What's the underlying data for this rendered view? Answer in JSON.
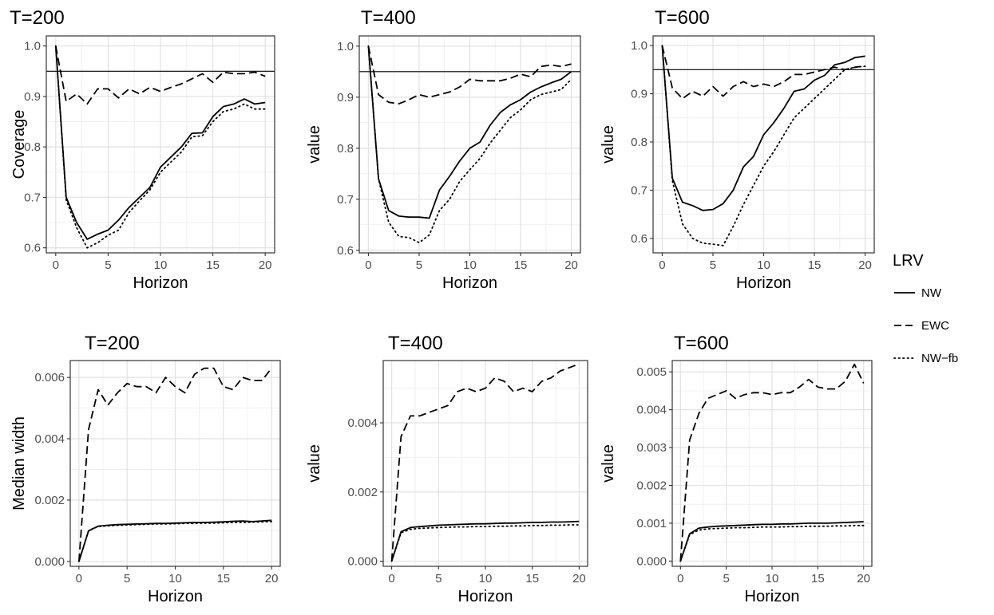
{
  "legend": {
    "title": "LRV",
    "entries": [
      {
        "name": "NW",
        "dash": "solid"
      },
      {
        "name": "EWC",
        "dash": "dashed"
      },
      {
        "name": "NW−fb",
        "dash": "dotted"
      }
    ],
    "placement": "right"
  },
  "chart_data": [
    {
      "type": "line",
      "title": "T=200",
      "xlabel": "Horizon",
      "ylabel": "Coverage",
      "xlim": [
        -0.9,
        20.9
      ],
      "ylim": [
        0.59,
        1.02
      ],
      "xticks": [
        0,
        5,
        10,
        15,
        20
      ],
      "yticks": [
        0.6,
        0.7,
        0.8,
        0.9,
        1.0
      ],
      "ytick_labels": [
        "0.6",
        "0.7",
        "0.8",
        "0.9",
        "1.0"
      ],
      "hline": 0.95,
      "grid": true,
      "x": [
        0,
        1,
        2,
        3,
        4,
        5,
        6,
        7,
        8,
        9,
        10,
        11,
        12,
        13,
        14,
        15,
        16,
        17,
        18,
        19,
        20
      ],
      "series": [
        {
          "name": "NW",
          "values": [
            1.0,
            0.7,
            0.65,
            0.617,
            0.627,
            0.635,
            0.655,
            0.68,
            0.7,
            0.72,
            0.76,
            0.78,
            0.8,
            0.827,
            0.828,
            0.86,
            0.88,
            0.885,
            0.895,
            0.885,
            0.888
          ]
        },
        {
          "name": "EWC",
          "values": [
            1.0,
            0.89,
            0.905,
            0.885,
            0.915,
            0.915,
            0.897,
            0.915,
            0.905,
            0.918,
            0.91,
            0.918,
            0.925,
            0.935,
            0.945,
            0.928,
            0.948,
            0.945,
            0.945,
            0.948,
            0.94
          ]
        },
        {
          "name": "NW−fb",
          "values": [
            1.0,
            0.695,
            0.64,
            0.6,
            0.61,
            0.625,
            0.635,
            0.67,
            0.693,
            0.715,
            0.75,
            0.77,
            0.79,
            0.82,
            0.822,
            0.85,
            0.87,
            0.875,
            0.885,
            0.875,
            0.875
          ]
        }
      ]
    },
    {
      "type": "line",
      "title": "T=400",
      "xlabel": "Horizon",
      "ylabel": "value",
      "xlim": [
        -0.9,
        20.9
      ],
      "ylim": [
        0.595,
        1.02
      ],
      "xticks": [
        0,
        5,
        10,
        15,
        20
      ],
      "yticks": [
        0.6,
        0.7,
        0.8,
        0.9,
        1.0
      ],
      "ytick_labels": [
        "0.6",
        "0.7",
        "0.8",
        "0.9",
        "1.0"
      ],
      "hline": 0.95,
      "grid": true,
      "x": [
        0,
        1,
        2,
        3,
        4,
        5,
        6,
        7,
        8,
        9,
        10,
        11,
        12,
        13,
        14,
        15,
        16,
        17,
        18,
        19,
        20
      ],
      "series": [
        {
          "name": "NW",
          "values": [
            1.0,
            0.74,
            0.678,
            0.667,
            0.665,
            0.665,
            0.663,
            0.718,
            0.745,
            0.775,
            0.8,
            0.812,
            0.845,
            0.87,
            0.885,
            0.895,
            0.91,
            0.92,
            0.928,
            0.935,
            0.95
          ]
        },
        {
          "name": "EWC",
          "values": [
            1.0,
            0.905,
            0.89,
            0.887,
            0.895,
            0.905,
            0.9,
            0.905,
            0.91,
            0.92,
            0.935,
            0.932,
            0.932,
            0.932,
            0.937,
            0.945,
            0.94,
            0.96,
            0.963,
            0.96,
            0.965
          ]
        },
        {
          "name": "NW−fb",
          "values": [
            1.0,
            0.74,
            0.655,
            0.627,
            0.625,
            0.615,
            0.63,
            0.678,
            0.7,
            0.735,
            0.758,
            0.78,
            0.81,
            0.835,
            0.86,
            0.875,
            0.895,
            0.905,
            0.91,
            0.915,
            0.935
          ]
        }
      ]
    },
    {
      "type": "line",
      "title": "T=600",
      "xlabel": "Horizon",
      "ylabel": "value",
      "xlim": [
        -0.9,
        20.9
      ],
      "ylim": [
        0.57,
        1.02
      ],
      "xticks": [
        0,
        5,
        10,
        15,
        20
      ],
      "yticks": [
        0.6,
        0.7,
        0.8,
        0.9,
        1.0
      ],
      "ytick_labels": [
        "0.6",
        "0.7",
        "0.8",
        "0.9",
        "1.0"
      ],
      "hline": 0.95,
      "grid": true,
      "x": [
        0,
        1,
        2,
        3,
        4,
        5,
        6,
        7,
        8,
        9,
        10,
        11,
        12,
        13,
        14,
        15,
        16,
        17,
        18,
        19,
        20
      ],
      "series": [
        {
          "name": "NW",
          "values": [
            1.0,
            0.725,
            0.675,
            0.668,
            0.658,
            0.66,
            0.672,
            0.7,
            0.748,
            0.77,
            0.815,
            0.84,
            0.87,
            0.905,
            0.91,
            0.928,
            0.938,
            0.96,
            0.965,
            0.975,
            0.978
          ]
        },
        {
          "name": "EWC",
          "values": [
            1.0,
            0.912,
            0.89,
            0.905,
            0.895,
            0.915,
            0.895,
            0.915,
            0.925,
            0.915,
            0.92,
            0.915,
            0.925,
            0.94,
            0.94,
            0.945,
            0.95,
            0.955,
            0.95,
            0.955,
            0.958
          ]
        },
        {
          "name": "NW−fb",
          "values": [
            1.0,
            0.72,
            0.63,
            0.6,
            0.59,
            0.588,
            0.585,
            0.625,
            0.67,
            0.71,
            0.75,
            0.78,
            0.815,
            0.85,
            0.87,
            0.89,
            0.91,
            0.93,
            0.95,
            0.955,
            0.957
          ]
        }
      ]
    },
    {
      "type": "line",
      "title": "T=200",
      "xlabel": "Horizon",
      "ylabel": "Median width",
      "xlim": [
        -0.9,
        20.9
      ],
      "ylim": [
        -0.00016,
        0.00655
      ],
      "xticks": [
        0,
        5,
        10,
        15,
        20
      ],
      "yticks": [
        0,
        0.002,
        0.004,
        0.006
      ],
      "ytick_labels": [
        "0.000",
        "0.002",
        "0.004",
        "0.006"
      ],
      "grid": true,
      "x": [
        0,
        1,
        2,
        3,
        4,
        5,
        6,
        7,
        8,
        9,
        10,
        11,
        12,
        13,
        14,
        15,
        16,
        17,
        18,
        19,
        20
      ],
      "series": [
        {
          "name": "NW",
          "values": [
            0.0,
            0.001,
            0.00115,
            0.00118,
            0.0012,
            0.00121,
            0.00122,
            0.00123,
            0.00124,
            0.00124,
            0.00125,
            0.00126,
            0.00127,
            0.00127,
            0.00128,
            0.00129,
            0.00131,
            0.00132,
            0.0013,
            0.00132,
            0.00134
          ]
        },
        {
          "name": "EWC",
          "values": [
            0.0,
            0.0043,
            0.0056,
            0.0051,
            0.0055,
            0.0058,
            0.0057,
            0.0057,
            0.0055,
            0.006,
            0.0057,
            0.0055,
            0.0061,
            0.0063,
            0.0063,
            0.0057,
            0.0056,
            0.006,
            0.0059,
            0.0059,
            0.0063
          ]
        },
        {
          "name": "NW−fb",
          "values": [
            0.0,
            0.001,
            0.00114,
            0.00116,
            0.00118,
            0.00119,
            0.0012,
            0.00121,
            0.00122,
            0.00122,
            0.00123,
            0.00124,
            0.00124,
            0.00125,
            0.00125,
            0.00126,
            0.00127,
            0.00127,
            0.00128,
            0.00129,
            0.0013
          ]
        }
      ]
    },
    {
      "type": "line",
      "title": "T=400",
      "xlabel": "Horizon",
      "ylabel": "value",
      "xlim": [
        -0.9,
        20.9
      ],
      "ylim": [
        -0.00015,
        0.0058
      ],
      "xticks": [
        0,
        5,
        10,
        15,
        20
      ],
      "yticks": [
        0,
        0.002,
        0.004
      ],
      "ytick_labels": [
        "0.000",
        "0.002",
        "0.004"
      ],
      "grid": true,
      "x": [
        0,
        1,
        2,
        3,
        4,
        5,
        6,
        7,
        8,
        9,
        10,
        11,
        12,
        13,
        14,
        15,
        16,
        17,
        18,
        19,
        20
      ],
      "series": [
        {
          "name": "NW",
          "values": [
            0.0,
            0.00085,
            0.00097,
            0.001,
            0.00102,
            0.00104,
            0.00105,
            0.00106,
            0.00107,
            0.00108,
            0.00108,
            0.00109,
            0.0011,
            0.0011,
            0.00111,
            0.00112,
            0.00112,
            0.00113,
            0.00113,
            0.00114,
            0.00115
          ]
        },
        {
          "name": "EWC",
          "values": [
            0.0,
            0.0036,
            0.0042,
            0.0042,
            0.0043,
            0.0044,
            0.0045,
            0.0049,
            0.005,
            0.0049,
            0.005,
            0.0053,
            0.0052,
            0.0049,
            0.005,
            0.0049,
            0.0052,
            0.0053,
            0.0055,
            0.0056,
            0.0057
          ]
        },
        {
          "name": "NW−fb",
          "values": [
            0.0,
            0.00082,
            0.00092,
            0.00095,
            0.00096,
            0.00097,
            0.00098,
            0.00099,
            0.00099,
            0.001,
            0.001,
            0.00101,
            0.00101,
            0.00102,
            0.00102,
            0.00103,
            0.00103,
            0.00104,
            0.00104,
            0.00105,
            0.00105
          ]
        }
      ]
    },
    {
      "type": "line",
      "title": "T=600",
      "xlabel": "Horizon",
      "ylabel": "value",
      "xlim": [
        -0.9,
        20.9
      ],
      "ylim": [
        -0.00014,
        0.0053
      ],
      "xticks": [
        0,
        5,
        10,
        15,
        20
      ],
      "yticks": [
        0,
        0.001,
        0.002,
        0.003,
        0.004,
        0.005
      ],
      "ytick_labels": [
        "0.000",
        "0.001",
        "0.002",
        "0.003",
        "0.004",
        "0.005"
      ],
      "grid": true,
      "x": [
        0,
        1,
        2,
        3,
        4,
        5,
        6,
        7,
        8,
        9,
        10,
        11,
        12,
        13,
        14,
        15,
        16,
        17,
        18,
        19,
        20
      ],
      "series": [
        {
          "name": "NW",
          "values": [
            0.0,
            0.00072,
            0.00087,
            0.0009,
            0.00092,
            0.00093,
            0.00094,
            0.00095,
            0.00096,
            0.00097,
            0.00097,
            0.00098,
            0.00098,
            0.00099,
            0.001,
            0.001,
            0.001,
            0.00101,
            0.00102,
            0.00103,
            0.00104
          ]
        },
        {
          "name": "EWC",
          "values": [
            0.0,
            0.0032,
            0.0039,
            0.0043,
            0.0044,
            0.0045,
            0.0043,
            0.0044,
            0.00445,
            0.00445,
            0.0044,
            0.00445,
            0.00445,
            0.0046,
            0.0048,
            0.0046,
            0.00455,
            0.00455,
            0.00475,
            0.0052,
            0.0047
          ]
        },
        {
          "name": "NW−fb",
          "values": [
            0.0,
            0.0007,
            0.00082,
            0.00085,
            0.00086,
            0.00087,
            0.00088,
            0.00088,
            0.00089,
            0.0009,
            0.0009,
            0.0009,
            0.00091,
            0.00091,
            0.00092,
            0.00092,
            0.00092,
            0.00093,
            0.00093,
            0.00094,
            0.00094
          ]
        }
      ]
    }
  ]
}
